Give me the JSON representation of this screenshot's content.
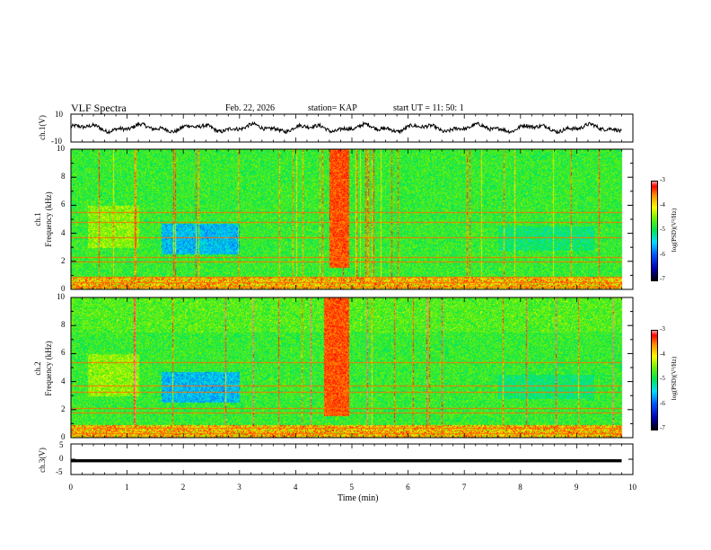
{
  "header": {
    "title": "VLF Spectra",
    "date": "Feb. 22, 2026",
    "station": "station= KAP",
    "start_ut": "start  UT =   11: 50: 1"
  },
  "chart_data": [
    {
      "type": "line",
      "name": "ch1-waveform",
      "ylabel": "ch.1(V)",
      "ylim": [
        -10,
        10
      ],
      "yticks": [
        "10",
        "-10"
      ],
      "xlim": [
        0,
        10
      ],
      "xlabel": "",
      "series": [
        {
          "name": "ch.1",
          "mean": 0,
          "amplitude_v": 3
        }
      ]
    },
    {
      "type": "heatmap",
      "name": "ch1-spectrogram",
      "ylabel": "ch.1\nFrequency  (kHz)",
      "ylabel_lines": [
        "ch.1",
        "Frequency  (kHz)"
      ],
      "ylim": [
        0,
        10
      ],
      "yticks": [
        "0",
        "2",
        "4",
        "6",
        "8",
        "10"
      ],
      "xlim": [
        0,
        10
      ],
      "data_extent_min": 9.8,
      "burst_min": [
        4.6,
        4.95
      ],
      "horizontal_lines_khz": [
        0.2,
        0.5,
        0.9,
        2.0,
        2.3,
        3.7,
        4.8,
        5.5
      ],
      "colorbar": {
        "label": "log(PSD)(V²/Hz)",
        "range": [
          -7,
          -3
        ],
        "ticks": [
          "-3",
          "-4",
          "-5",
          "-6",
          "-7"
        ]
      }
    },
    {
      "type": "heatmap",
      "name": "ch2-spectrogram",
      "ylabel": "ch.2\nFrequency  (kHz)",
      "ylabel_lines": [
        "ch.2",
        "Frequency  (kHz)"
      ],
      "ylim": [
        0,
        10
      ],
      "yticks": [
        "0",
        "2",
        "4",
        "6",
        "8",
        "10"
      ],
      "xlim": [
        0,
        10
      ],
      "data_extent_min": 9.8,
      "burst_min": [
        4.5,
        4.95
      ],
      "horizontal_lines_khz": [
        0.3,
        0.7,
        1.8,
        2.1,
        3.3,
        3.7,
        5.4
      ],
      "colorbar": {
        "label": "log(PSD)(V²/Hz)",
        "range": [
          -7,
          -3
        ],
        "ticks": [
          "-3",
          "-4",
          "-5",
          "-6",
          "-7"
        ]
      }
    },
    {
      "type": "line",
      "name": "ch3-signal",
      "ylabel": "ch.3(V)",
      "ylim": [
        -5,
        5
      ],
      "yticks": [
        "5",
        "0",
        "-5"
      ],
      "xlim": [
        0,
        10
      ],
      "series": [
        {
          "name": "ch.3",
          "level_v": -0.5,
          "band_v": [
            -1.0,
            0.0
          ]
        }
      ]
    }
  ],
  "x_axis": {
    "label": "Time  (min)",
    "ticks": [
      "0",
      "1",
      "2",
      "3",
      "4",
      "5",
      "6",
      "7",
      "8",
      "9",
      "10"
    ]
  },
  "colors": {
    "trace": "#000000",
    "background": "#ffffff"
  }
}
